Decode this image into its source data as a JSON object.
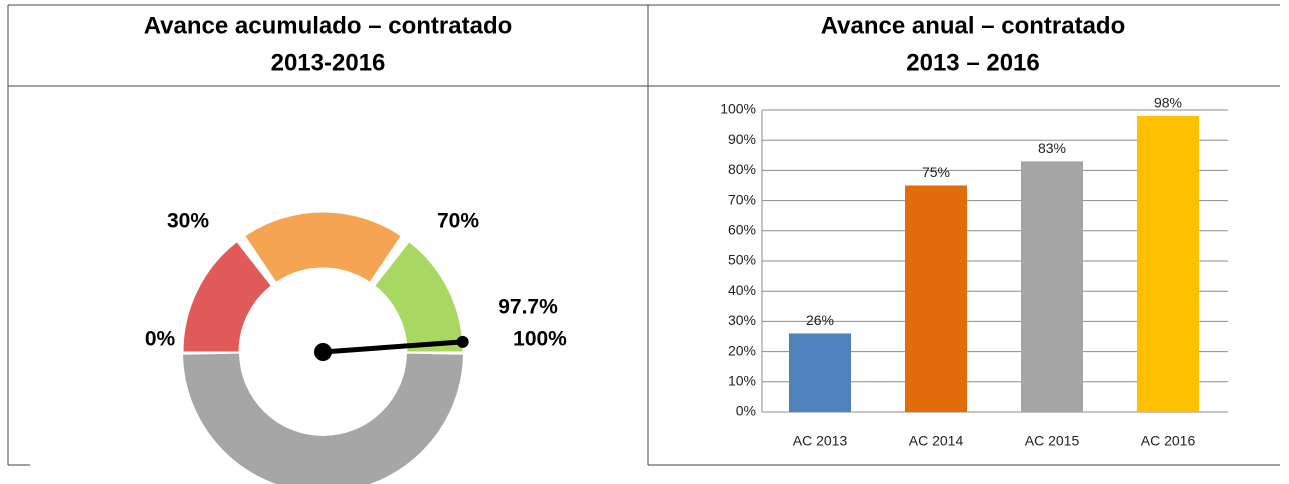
{
  "chart_data": [
    {
      "type": "gauge",
      "title": [
        "Avance acumulado – contratado",
        "2013-2016"
      ],
      "value": 97.7,
      "value_label": "97.7%",
      "value_color": "#1aab4a",
      "ylim": [
        0,
        100
      ],
      "yticks": [
        {
          "value": 0,
          "label": "0%"
        },
        {
          "value": 30,
          "label": "30%"
        },
        {
          "value": 70,
          "label": "70%"
        },
        {
          "value": 100,
          "label": "100%"
        }
      ],
      "band_colors": [
        "#e05a5a",
        "#f5a452",
        "#a9d862"
      ]
    },
    {
      "type": "bar",
      "title": [
        "Avance anual – contratado",
        "2013 – 2016"
      ],
      "categories": [
        "AC 2013",
        "AC 2014",
        "AC 2015",
        "AC 2016"
      ],
      "values": [
        26,
        75,
        83,
        98
      ],
      "value_labels": [
        "26%",
        "75%",
        "83%",
        "98%"
      ],
      "colors": [
        "#4f81bd",
        "#e36c0a",
        "#a5a5a5",
        "#ffc000"
      ],
      "ylim": [
        0,
        100
      ],
      "yticks": [
        {
          "value": 0,
          "label": "0%"
        },
        {
          "value": 10,
          "label": "10%"
        },
        {
          "value": 20,
          "label": "20%"
        },
        {
          "value": 30,
          "label": "30%"
        },
        {
          "value": 40,
          "label": "40%"
        },
        {
          "value": 50,
          "label": "50%"
        },
        {
          "value": 60,
          "label": "60%"
        },
        {
          "value": 70,
          "label": "70%"
        },
        {
          "value": 80,
          "label": "80%"
        },
        {
          "value": 90,
          "label": "90%"
        },
        {
          "value": 100,
          "label": "100%"
        }
      ],
      "grid": true
    }
  ]
}
